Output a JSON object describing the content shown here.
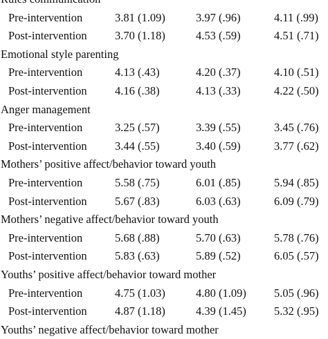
{
  "rows": [
    {
      "kind": "heading",
      "label": "Rules communication"
    },
    {
      "kind": "sub",
      "label": "Pre-intervention",
      "values": [
        "3.81 (1.09)",
        "3.97 (.96)",
        "4.11 (.99)"
      ]
    },
    {
      "kind": "sub",
      "label": "Post-intervention",
      "values": [
        "3.70 (1.18)",
        "4.53 (.59)",
        "4.51 (.71)"
      ]
    },
    {
      "kind": "heading",
      "label": "Emotional style parenting"
    },
    {
      "kind": "sub",
      "label": "Pre-intervention",
      "values": [
        "4.13 (.43)",
        "4.20 (.37)",
        "4.10 (.51)"
      ]
    },
    {
      "kind": "sub",
      "label": "Post-intervention",
      "values": [
        "4.16 (.38)",
        "4.13 (.33)",
        "4.22 (.50)"
      ]
    },
    {
      "kind": "heading",
      "label": "Anger management"
    },
    {
      "kind": "sub",
      "label": "Pre-intervention",
      "values": [
        "3.25 (.57)",
        "3.39 (.55)",
        "3.45 (.76)"
      ]
    },
    {
      "kind": "sub",
      "label": "Post-intervention",
      "values": [
        "3.44 (.55)",
        "3.40 (.59)",
        "3.77 (.62)"
      ]
    },
    {
      "kind": "heading",
      "label": "Mothers’ positive affect/behavior toward youth"
    },
    {
      "kind": "sub",
      "label": "Pre-intervention",
      "values": [
        "5.58 (.75)",
        "6.01 (.85)",
        "5.94 (.85)"
      ]
    },
    {
      "kind": "sub",
      "label": "Post-intervention",
      "values": [
        "5.67 (.83)",
        "6.03 (.63)",
        "6.09 (.79)"
      ]
    },
    {
      "kind": "heading",
      "label": "Mothers’ negative affect/behavior toward youth"
    },
    {
      "kind": "sub",
      "label": "Pre-intervention",
      "values": [
        "5.68 (.88)",
        "5.70 (.63)",
        "5.78 (.76)"
      ]
    },
    {
      "kind": "sub",
      "label": "Post-intervention",
      "values": [
        "5.83 (.63)",
        "5.89 (.52)",
        "6.05 (.57)"
      ]
    },
    {
      "kind": "heading",
      "label": "Youths’ positive affect/behavior toward mother"
    },
    {
      "kind": "sub",
      "label": "Pre-intervention",
      "values": [
        "4.75 (1.03)",
        "4.80 (1.09)",
        "5.05 (.96)"
      ]
    },
    {
      "kind": "sub",
      "label": "Post-intervention",
      "values": [
        "4.87 (1.18)",
        "4.39 (1.45)",
        "5.32 (.95)"
      ]
    },
    {
      "kind": "heading",
      "label": "Youths’ negative affect/behavior toward mother"
    }
  ]
}
